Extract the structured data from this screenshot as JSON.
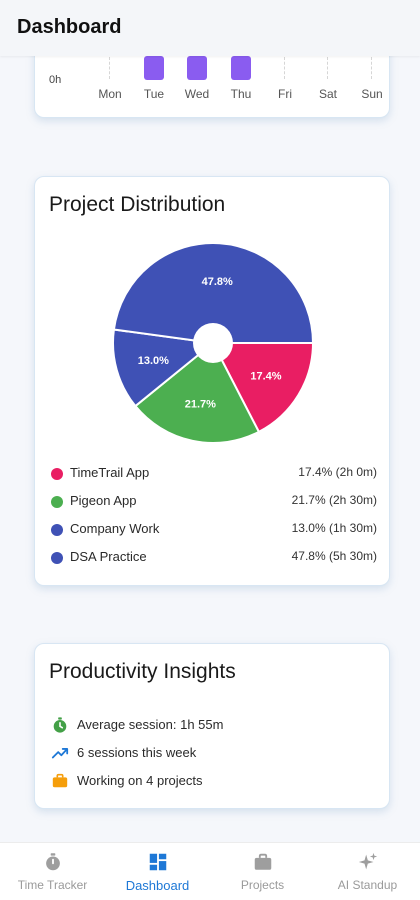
{
  "header": {
    "title": "Dashboard"
  },
  "weekly": {
    "zero_label": "0h",
    "days": [
      {
        "label": "Mon",
        "active": false
      },
      {
        "label": "Tue",
        "active": true
      },
      {
        "label": "Wed",
        "active": true
      },
      {
        "label": "Thu",
        "active": true
      },
      {
        "label": "Fri",
        "active": false
      },
      {
        "label": "Sat",
        "active": false
      },
      {
        "label": "Sun",
        "active": false
      }
    ],
    "bar_color": "#8a5cf0"
  },
  "distribution": {
    "title": "Project Distribution",
    "chart_data": {
      "type": "pie",
      "donut_hole": true,
      "slices": [
        {
          "name": "TimeTrail App",
          "percent": 17.4,
          "label": "17.4%",
          "color": "#e91e63"
        },
        {
          "name": "Pigeon App",
          "percent": 21.7,
          "label": "21.7%",
          "color": "#4caf50"
        },
        {
          "name": "Company Work",
          "percent": 13.0,
          "label": "13.0%",
          "color": "#3f51b5"
        },
        {
          "name": "DSA Practice",
          "percent": 47.8,
          "label": "47.8%",
          "color": "#3f51b5"
        }
      ]
    },
    "legend": [
      {
        "name": "TimeTrail App",
        "value": "17.4% (2h 0m)",
        "color": "#e91e63"
      },
      {
        "name": "Pigeon App",
        "value": "21.7% (2h 30m)",
        "color": "#4caf50"
      },
      {
        "name": "Company Work",
        "value": "13.0% (1h 30m)",
        "color": "#3f51b5"
      },
      {
        "name": "DSA Practice",
        "value": "47.8% (5h 30m)",
        "color": "#3f51b5"
      }
    ]
  },
  "insights": {
    "title": "Productivity Insights",
    "items": [
      {
        "icon": "stopwatch-icon",
        "text": "Average session: 1h 55m"
      },
      {
        "icon": "trending-up-icon",
        "text": "6 sessions this week"
      },
      {
        "icon": "briefcase-icon",
        "text": "Working on 4 projects"
      }
    ]
  },
  "nav": {
    "items": [
      {
        "label": "Time Tracker",
        "icon": "stopwatch-icon",
        "active": false
      },
      {
        "label": "Dashboard",
        "icon": "dashboard-icon",
        "active": true
      },
      {
        "label": "Projects",
        "icon": "briefcase-icon",
        "active": false
      },
      {
        "label": "AI Standup",
        "icon": "sparkle-icon",
        "active": false
      }
    ],
    "active_color": "#1e78d6"
  }
}
